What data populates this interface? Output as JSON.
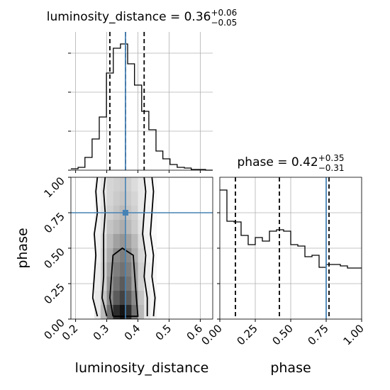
{
  "chart_data": [
    {
      "type": "histogram",
      "title": "luminosity_distance = 0.36",
      "title_sup": "+0.06",
      "title_sub": "−0.05",
      "bins": [
        0.185,
        0.208,
        0.23,
        0.253,
        0.276,
        0.299,
        0.321,
        0.344,
        0.367,
        0.389,
        0.412,
        0.435,
        0.458,
        0.48,
        0.503,
        0.526,
        0.549,
        0.571,
        0.594,
        0.617,
        0.64
      ],
      "values": [
        2,
        4,
        18,
        44,
        75,
        137,
        172,
        178,
        150,
        120,
        83,
        57,
        27,
        16,
        8,
        4,
        3,
        1,
        1,
        0
      ],
      "xlim": [
        0.185,
        0.64
      ],
      "xticks": [
        0.2,
        0.3,
        0.4,
        0.5,
        0.6
      ],
      "ylim": [
        0,
        195
      ],
      "yticks": [
        0,
        55,
        110,
        165
      ],
      "quantiles": [
        0.31,
        0.36,
        0.42
      ],
      "truth": 0.36,
      "color": "#000000",
      "truth_color": "#4682b4",
      "grid": true
    },
    {
      "type": "hist2d",
      "xlabel": "luminosity_distance",
      "ylabel": "phase",
      "xlim": [
        0.185,
        0.64
      ],
      "xticks": [
        0.2,
        0.3,
        0.4,
        0.5,
        0.6
      ],
      "ylim": [
        0,
        1
      ],
      "yticks": [
        {
          "value": 0,
          "label": "0.00"
        },
        {
          "value": 0.25,
          "label": "0.25"
        },
        {
          "value": 0.5,
          "label": "0.50"
        },
        {
          "value": 0.75,
          "label": "0.75"
        },
        {
          "value": 1,
          "label": "1.00"
        }
      ],
      "x_edges": [
        0.26,
        0.28,
        0.3,
        0.32,
        0.34,
        0.36,
        0.38,
        0.4,
        0.42,
        0.44,
        0.46
      ],
      "y_edges": [
        0,
        0.1,
        0.2,
        0.3,
        0.4,
        0.5,
        0.6,
        0.7,
        0.8,
        0.9,
        1
      ],
      "density": [
        [
          0.1,
          0.3,
          0.6,
          0.9,
          1.0,
          0.9,
          0.6,
          0.3,
          0.1,
          0.05
        ],
        [
          0.1,
          0.25,
          0.5,
          0.7,
          0.8,
          0.7,
          0.5,
          0.25,
          0.1,
          0.05
        ],
        [
          0.08,
          0.2,
          0.45,
          0.6,
          0.7,
          0.6,
          0.4,
          0.2,
          0.08,
          0.04
        ],
        [
          0.08,
          0.2,
          0.4,
          0.55,
          0.6,
          0.55,
          0.4,
          0.2,
          0.08,
          0.04
        ],
        [
          0.06,
          0.18,
          0.35,
          0.5,
          0.55,
          0.5,
          0.35,
          0.18,
          0.06,
          0.03
        ],
        [
          0.06,
          0.15,
          0.3,
          0.4,
          0.45,
          0.4,
          0.3,
          0.15,
          0.06,
          0.03
        ],
        [
          0.05,
          0.12,
          0.25,
          0.3,
          0.35,
          0.3,
          0.22,
          0.12,
          0.05,
          0.02
        ],
        [
          0.05,
          0.12,
          0.2,
          0.25,
          0.3,
          0.25,
          0.2,
          0.1,
          0.05,
          0.02
        ],
        [
          0.04,
          0.1,
          0.18,
          0.22,
          0.25,
          0.22,
          0.18,
          0.1,
          0.04,
          0.02
        ],
        [
          0.04,
          0.1,
          0.18,
          0.2,
          0.22,
          0.2,
          0.15,
          0.1,
          0.04,
          0.02
        ]
      ],
      "contours": [
        {
          "x": [
            0.27,
            0.255,
            0.26,
            0.265,
            0.26,
            0.27,
            0.265,
            0.27
          ],
          "y": [
            0.02,
            0.15,
            0.3,
            0.45,
            0.6,
            0.75,
            0.9,
            1.0
          ]
        },
        {
          "x": [
            0.45,
            0.455,
            0.445,
            0.45,
            0.44,
            0.445,
            0.45,
            0.445
          ],
          "y": [
            0.02,
            0.15,
            0.3,
            0.45,
            0.6,
            0.75,
            0.9,
            1.0
          ]
        },
        {
          "x": [
            0.3,
            0.285,
            0.29,
            0.29,
            0.29,
            0.295,
            0.29,
            0.295
          ],
          "y": [
            0.02,
            0.15,
            0.3,
            0.45,
            0.6,
            0.75,
            0.9,
            1.0
          ]
        },
        {
          "x": [
            0.43,
            0.43,
            0.42,
            0.425,
            0.415,
            0.42,
            0.425,
            0.42
          ],
          "y": [
            0.02,
            0.15,
            0.3,
            0.45,
            0.6,
            0.75,
            0.9,
            1.0
          ]
        },
        {
          "x": [
            0.32,
            0.31,
            0.315,
            0.32,
            0.35,
            0.385,
            0.39,
            0.395,
            0.4,
            0.32
          ],
          "y": [
            0.02,
            0.15,
            0.3,
            0.45,
            0.5,
            0.45,
            0.3,
            0.15,
            0.02,
            0.02
          ]
        }
      ],
      "truth": [
        0.36,
        0.75
      ],
      "truth_color": "#4682b4",
      "color": "#000000",
      "grid": true
    },
    {
      "type": "histogram",
      "title": "phase = 0.42",
      "title_sup": "+0.35",
      "title_sub": "−0.31",
      "xlabel": "phase",
      "bins": [
        0,
        0.05,
        0.1,
        0.15,
        0.2,
        0.25,
        0.3,
        0.35,
        0.4,
        0.45,
        0.5,
        0.55,
        0.6,
        0.65,
        0.7,
        0.75,
        0.8,
        0.85,
        0.9,
        0.95,
        1
      ],
      "values": [
        182,
        138,
        137,
        118,
        105,
        115,
        110,
        124,
        126,
        124,
        105,
        103,
        88,
        90,
        73,
        77,
        77,
        75,
        72,
        72
      ],
      "xlim": [
        0,
        1
      ],
      "xticks": [
        {
          "value": 0,
          "label": "0.00"
        },
        {
          "value": 0.25,
          "label": "0.25"
        },
        {
          "value": 0.5,
          "label": "0.50"
        },
        {
          "value": 0.75,
          "label": "0.75"
        },
        {
          "value": 1,
          "label": "1.00"
        }
      ],
      "ylim": [
        0,
        200
      ],
      "yticks": [
        0,
        50,
        100,
        150
      ],
      "quantiles": [
        0.11,
        0.42,
        0.77
      ],
      "truth": 0.75,
      "color": "#000000",
      "truth_color": "#4682b4",
      "grid": true
    }
  ]
}
